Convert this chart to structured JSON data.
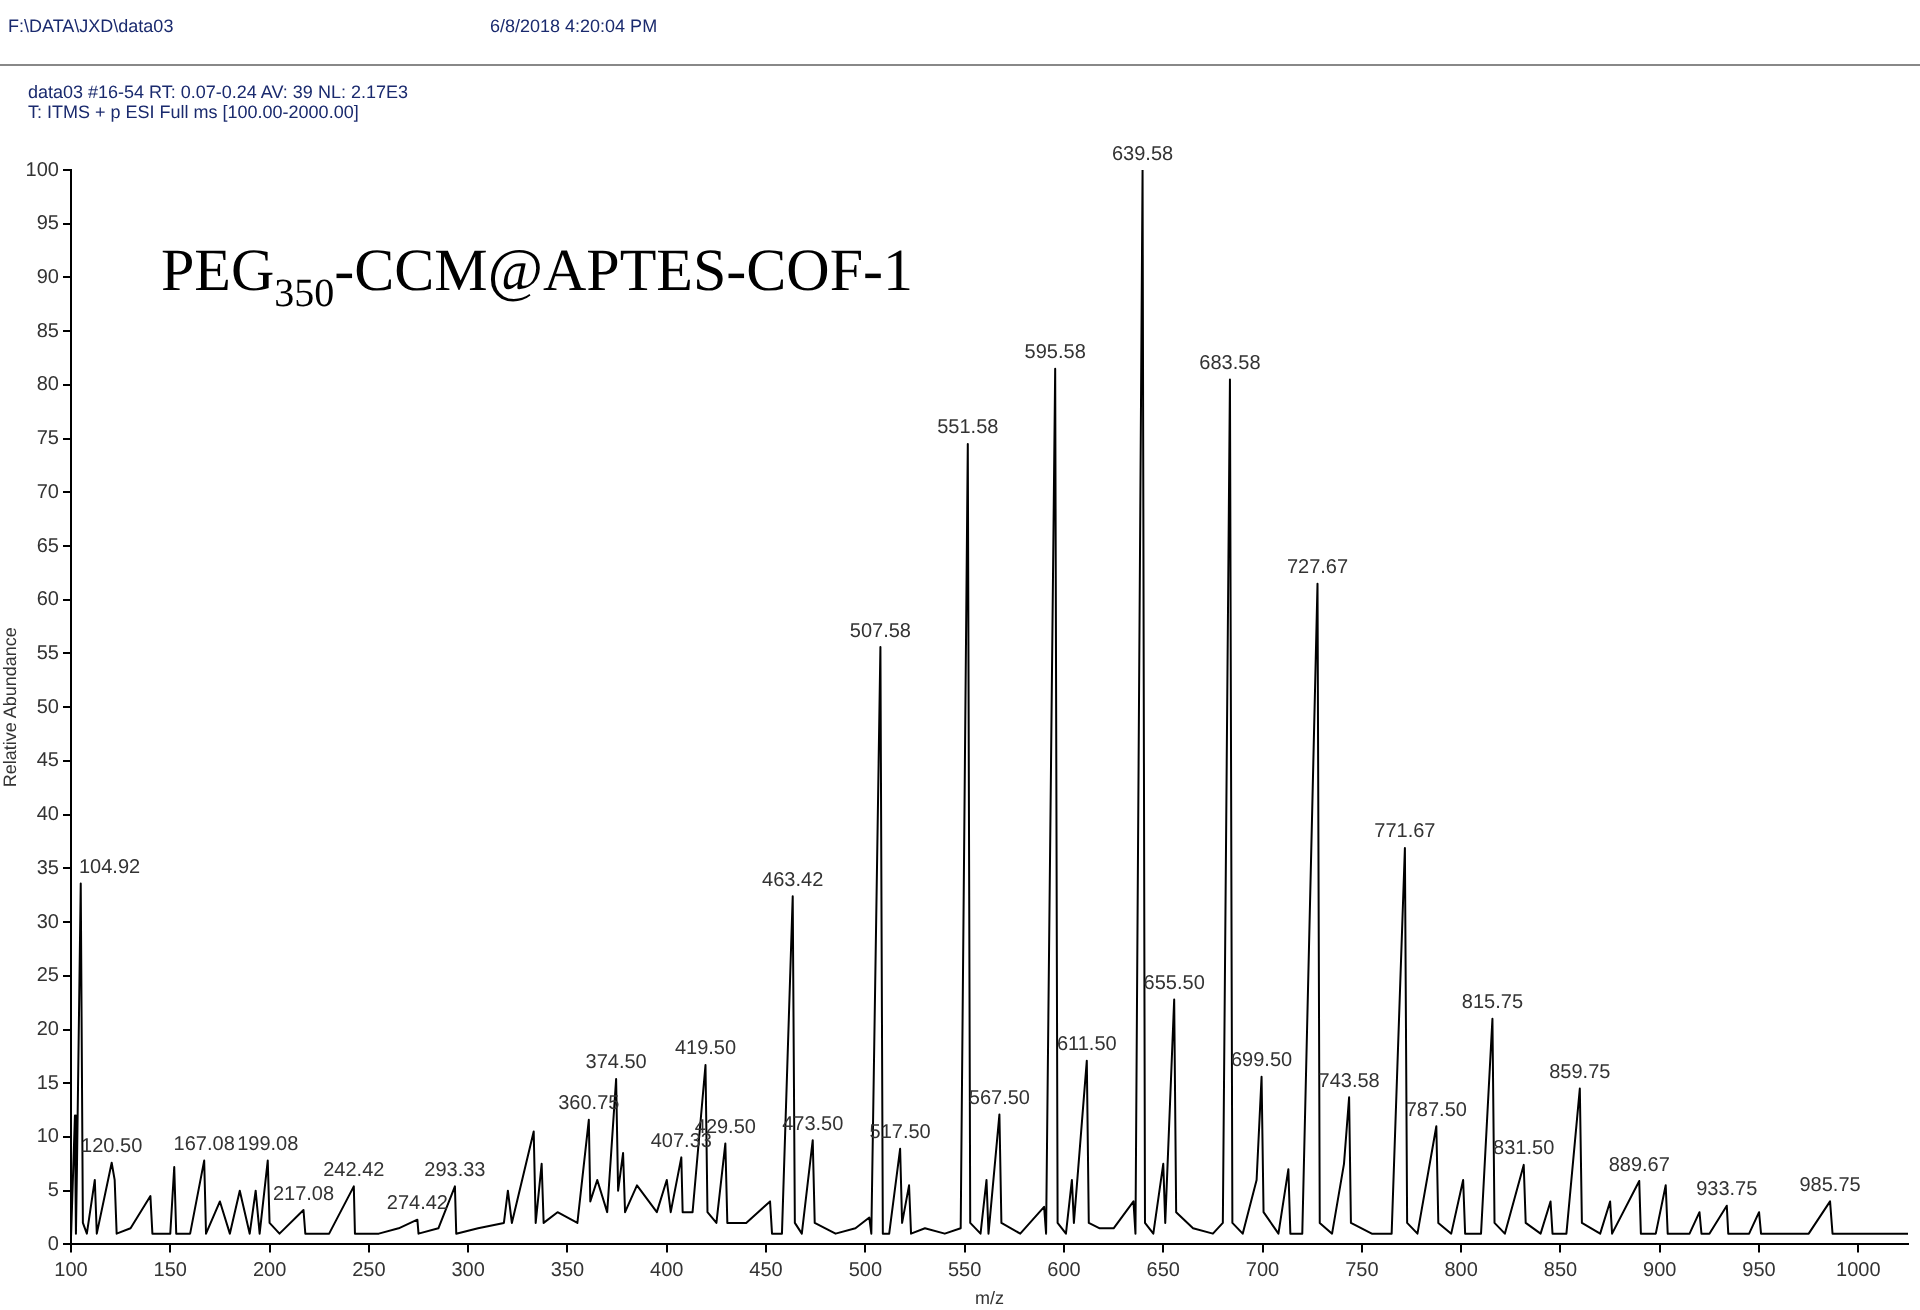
{
  "chart_data": {
    "type": "line",
    "title": "PEG$_{350}$-CCM@APTES-COF-1",
    "xlabel": "m/z",
    "ylabel": "Relative Abundance",
    "xlim": [
      100,
      1025
    ],
    "xticks": [
      100,
      150,
      200,
      250,
      300,
      350,
      400,
      450,
      500,
      550,
      600,
      650,
      700,
      750,
      800,
      850,
      900,
      950,
      1000
    ],
    "ylim": [
      0,
      100
    ],
    "yticks": [
      0,
      5,
      10,
      15,
      20,
      25,
      30,
      35,
      40,
      45,
      50,
      55,
      60,
      65,
      70,
      75,
      80,
      85,
      90,
      95,
      100
    ],
    "grid": false,
    "legend": false,
    "marker": "none",
    "line_style": "solid",
    "series": [
      {
        "color": "#000000",
        "x": [
          100,
          102,
          102.5,
          103,
          104.92,
          106,
          108,
          112,
          113,
          120.5,
          122,
          123,
          130,
          140,
          141,
          150,
          152,
          153,
          160,
          167.08,
          168,
          175,
          180,
          185,
          190,
          193,
          195,
          199.08,
          200,
          205,
          217.08,
          218,
          230,
          242.42,
          243,
          255,
          265,
          274.42,
          275,
          285,
          293.33,
          294,
          305,
          318,
          320,
          322,
          333,
          334,
          337,
          338,
          345,
          355,
          360.75,
          361.5,
          365,
          370,
          374.5,
          375.5,
          378,
          379,
          385,
          395,
          400,
          402,
          407.33,
          408,
          413,
          419.5,
          420.5,
          425,
          429.5,
          430.5,
          440,
          452,
          453,
          458,
          463.42,
          464.5,
          468,
          473.5,
          474.5,
          485,
          495,
          502,
          503,
          507.58,
          508.8,
          512,
          517.5,
          518.5,
          522,
          523,
          530,
          540,
          548,
          551.58,
          552.8,
          558,
          561,
          562,
          567.5,
          568.5,
          578,
          590,
          591,
          595.58,
          596.8,
          601,
          604,
          605,
          611.5,
          612.5,
          618,
          625,
          635,
          636,
          639.58,
          640.8,
          645,
          650,
          651,
          655.5,
          656.5,
          665,
          675,
          680,
          683.58,
          684.8,
          690,
          697,
          699.5,
          700.5,
          708,
          713,
          714,
          720,
          727.67,
          728.8,
          735,
          741,
          743.58,
          744.5,
          755,
          765,
          771.67,
          772.8,
          778,
          787.5,
          788.5,
          795,
          801,
          802,
          810,
          815.75,
          816.8,
          822,
          831.5,
          832.5,
          840,
          845,
          846,
          853,
          859.75,
          860.8,
          870,
          875,
          876,
          889.67,
          890.5,
          898,
          903,
          904,
          915,
          920,
          921,
          925,
          933.75,
          934.5,
          945,
          950,
          951,
          960,
          975,
          985.75,
          987,
          1000,
          1010,
          1025
        ],
        "values": [
          0.5,
          12,
          1,
          7,
          33.6,
          2,
          1,
          6,
          1,
          7.6,
          6,
          1,
          1.5,
          4.5,
          1,
          1,
          7.2,
          1,
          1,
          7.8,
          1,
          4,
          1,
          5,
          1,
          5,
          1,
          7.8,
          2,
          1,
          3.2,
          1,
          1,
          5.4,
          1,
          1,
          1.5,
          2.3,
          1,
          1.5,
          5.4,
          1,
          1.5,
          2,
          5,
          2,
          10.5,
          2,
          7.5,
          2,
          3,
          2,
          11.6,
          4,
          6,
          3,
          15.4,
          5,
          8.5,
          3,
          5.5,
          3,
          6,
          3,
          8.1,
          3,
          3,
          16.7,
          3,
          2,
          9.4,
          2,
          2,
          4,
          1,
          1,
          32.4,
          2,
          1,
          9.7,
          2,
          1,
          1.5,
          2.5,
          1,
          55.6,
          1,
          1,
          8.9,
          2,
          5.5,
          1,
          1.5,
          1,
          1.5,
          74.5,
          2,
          1,
          6,
          1,
          12.1,
          2,
          1,
          3.5,
          1,
          81.5,
          2,
          1,
          6,
          2,
          17.1,
          2,
          1.5,
          1.5,
          4,
          1,
          100,
          2,
          1,
          7.5,
          2,
          22.8,
          3,
          1.5,
          1,
          2,
          80.5,
          2,
          1,
          6,
          15.6,
          3,
          1,
          7,
          1,
          1,
          61.5,
          2,
          1,
          7.5,
          13.7,
          2,
          1,
          1,
          36.9,
          2,
          1,
          11,
          2,
          1,
          6,
          1,
          1,
          21,
          2,
          1,
          7.4,
          2,
          1,
          4,
          1,
          1,
          14.5,
          2,
          1,
          4,
          1,
          5.9,
          1,
          1,
          5.5,
          1,
          1,
          3,
          1,
          1,
          3.6,
          1,
          1,
          3,
          1,
          1,
          1,
          4,
          1,
          1,
          1,
          1
        ]
      }
    ],
    "annotations": [
      "F:\\DATA\\JXD\\data03",
      "6/8/2018 4:20:04 PM",
      "data03 #16-54  RT: 0.07-0.24  AV: 39  NL: 2.17E3",
      "T: ITMS + p ESI Full ms [100.00-2000.00]",
      {
        "text": "104.92",
        "x": 104.92,
        "y": 33.6
      },
      {
        "text": "120.50",
        "x": 120.5,
        "y": 7.6
      },
      {
        "text": "167.08",
        "x": 167.08,
        "y": 7.8
      },
      {
        "text": "199.08",
        "x": 199.08,
        "y": 7.8
      },
      {
        "text": "217.08",
        "x": 217.08,
        "y": 3.2
      },
      {
        "text": "242.42",
        "x": 242.42,
        "y": 5.4
      },
      {
        "text": "274.42",
        "x": 274.42,
        "y": 2.3
      },
      {
        "text": "293.33",
        "x": 293.33,
        "y": 5.4
      },
      {
        "text": "360.75",
        "x": 360.75,
        "y": 11.6
      },
      {
        "text": "374.50",
        "x": 374.5,
        "y": 15.4
      },
      {
        "text": "407.33",
        "x": 407.33,
        "y": 8.1
      },
      {
        "text": "419.50",
        "x": 419.5,
        "y": 16.7
      },
      {
        "text": "429.50",
        "x": 429.5,
        "y": 9.4
      },
      {
        "text": "463.42",
        "x": 463.42,
        "y": 32.4
      },
      {
        "text": "473.50",
        "x": 473.5,
        "y": 9.7
      },
      {
        "text": "507.58",
        "x": 507.58,
        "y": 55.6
      },
      {
        "text": "517.50",
        "x": 517.5,
        "y": 8.9
      },
      {
        "text": "551.58",
        "x": 551.58,
        "y": 74.5
      },
      {
        "text": "567.50",
        "x": 567.5,
        "y": 12.1
      },
      {
        "text": "595.58",
        "x": 595.58,
        "y": 81.5
      },
      {
        "text": "611.50",
        "x": 611.5,
        "y": 17.1
      },
      {
        "text": "639.58",
        "x": 639.58,
        "y": 100
      },
      {
        "text": "655.50",
        "x": 655.5,
        "y": 22.8
      },
      {
        "text": "683.58",
        "x": 683.58,
        "y": 80.5
      },
      {
        "text": "699.50",
        "x": 699.5,
        "y": 15.6
      },
      {
        "text": "727.67",
        "x": 727.67,
        "y": 61.5
      },
      {
        "text": "743.58",
        "x": 743.58,
        "y": 13.7
      },
      {
        "text": "771.67",
        "x": 771.67,
        "y": 36.9
      },
      {
        "text": "787.50",
        "x": 787.5,
        "y": 11
      },
      {
        "text": "815.75",
        "x": 815.75,
        "y": 21
      },
      {
        "text": "831.50",
        "x": 831.5,
        "y": 7.4
      },
      {
        "text": "859.75",
        "x": 859.75,
        "y": 14.5
      },
      {
        "text": "889.67",
        "x": 889.67,
        "y": 5.9
      },
      {
        "text": "933.75",
        "x": 933.75,
        "y": 3.6
      },
      {
        "text": "985.75",
        "x": 985.75,
        "y": 4
      }
    ]
  }
}
